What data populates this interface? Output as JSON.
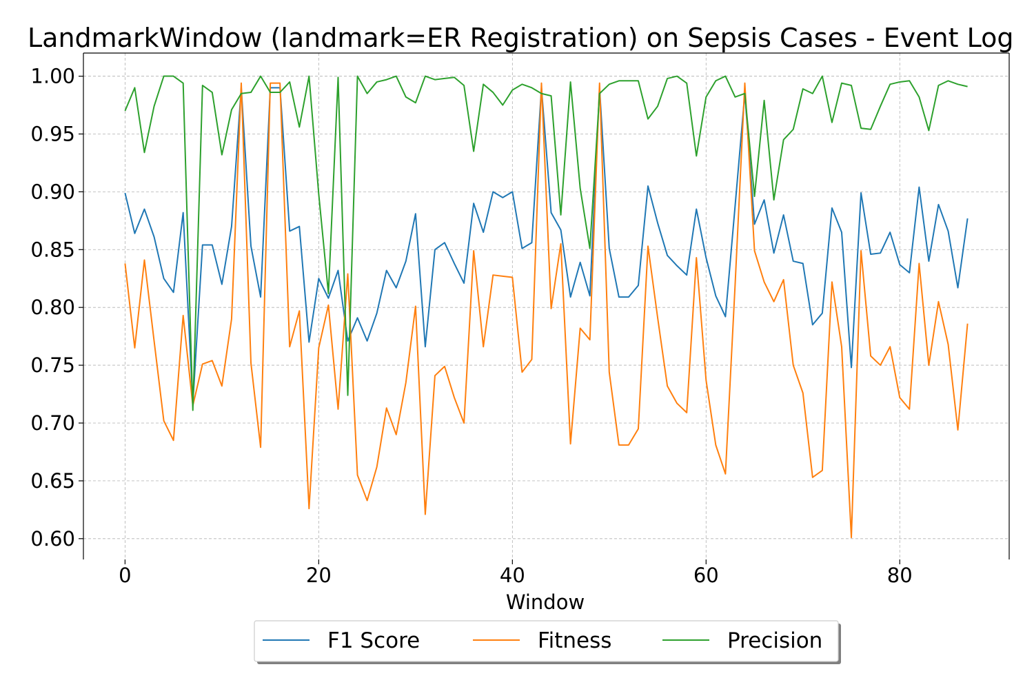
{
  "chart_data": {
    "type": "line",
    "title": "LandmarkWindow (landmark=ER Registration) on Sepsis Cases - Event Log",
    "xlabel": "Window",
    "ylabel": "",
    "xlim": [
      -4.3,
      91.3
    ],
    "ylim": [
      0.582,
      1.02
    ],
    "grid": true,
    "legend_position": "bottom-center",
    "xticks": [
      0,
      20,
      40,
      60,
      80
    ],
    "yticks": [
      0.6,
      0.65,
      0.7,
      0.75,
      0.8,
      0.85,
      0.9,
      0.95,
      1.0
    ],
    "xtick_labels": [
      "0",
      "20",
      "40",
      "60",
      "80"
    ],
    "ytick_labels": [
      "0.60",
      "0.65",
      "0.70",
      "0.75",
      "0.80",
      "0.85",
      "0.90",
      "0.95",
      "1.00"
    ],
    "x": [
      0,
      1,
      2,
      3,
      4,
      5,
      6,
      7,
      8,
      9,
      10,
      11,
      12,
      13,
      14,
      15,
      16,
      17,
      18,
      19,
      20,
      21,
      22,
      23,
      24,
      25,
      26,
      27,
      28,
      29,
      30,
      31,
      32,
      33,
      34,
      35,
      36,
      37,
      38,
      39,
      40,
      41,
      42,
      43,
      44,
      45,
      46,
      47,
      48,
      49,
      50,
      51,
      52,
      53,
      54,
      55,
      56,
      57,
      58,
      59,
      60,
      61,
      62,
      63,
      64,
      65,
      66,
      67,
      68,
      69,
      70,
      71,
      72,
      73,
      74,
      75,
      76,
      77,
      78,
      79,
      80,
      81,
      82,
      83,
      84,
      85,
      86,
      87
    ],
    "series": [
      {
        "name": "F1 Score",
        "color": "#1f77b4",
        "values": [
          0.899,
          0.864,
          0.885,
          0.861,
          0.825,
          0.813,
          0.882,
          0.717,
          0.854,
          0.854,
          0.82,
          0.87,
          0.99,
          0.853,
          0.809,
          0.99,
          0.99,
          0.866,
          0.87,
          0.77,
          0.825,
          0.808,
          0.832,
          0.771,
          0.791,
          0.771,
          0.795,
          0.832,
          0.817,
          0.84,
          0.881,
          0.766,
          0.85,
          0.856,
          0.838,
          0.821,
          0.89,
          0.865,
          0.9,
          0.895,
          0.9,
          0.851,
          0.856,
          0.99,
          0.882,
          0.867,
          0.809,
          0.839,
          0.81,
          0.99,
          0.851,
          0.809,
          0.809,
          0.819,
          0.905,
          0.873,
          0.845,
          0.836,
          0.828,
          0.885,
          0.843,
          0.81,
          0.792,
          0.888,
          0.985,
          0.872,
          0.893,
          0.847,
          0.88,
          0.84,
          0.838,
          0.785,
          0.795,
          0.886,
          0.865,
          0.748,
          0.899,
          0.846,
          0.847,
          0.865,
          0.837,
          0.83,
          0.904,
          0.84,
          0.889,
          0.866,
          0.817,
          0.877
        ]
      },
      {
        "name": "Fitness",
        "color": "#ff7f0e",
        "values": [
          0.838,
          0.765,
          0.841,
          0.771,
          0.702,
          0.685,
          0.793,
          0.715,
          0.751,
          0.754,
          0.732,
          0.79,
          0.994,
          0.752,
          0.679,
          0.994,
          0.994,
          0.766,
          0.797,
          0.626,
          0.765,
          0.802,
          0.712,
          0.829,
          0.655,
          0.633,
          0.662,
          0.713,
          0.69,
          0.735,
          0.801,
          0.621,
          0.741,
          0.749,
          0.722,
          0.7,
          0.849,
          0.766,
          0.828,
          0.827,
          0.826,
          0.744,
          0.755,
          0.994,
          0.799,
          0.855,
          0.682,
          0.782,
          0.772,
          0.994,
          0.744,
          0.681,
          0.681,
          0.695,
          0.853,
          0.791,
          0.732,
          0.717,
          0.709,
          0.843,
          0.737,
          0.681,
          0.656,
          0.82,
          0.994,
          0.849,
          0.822,
          0.805,
          0.824,
          0.75,
          0.726,
          0.653,
          0.659,
          0.822,
          0.766,
          0.601,
          0.849,
          0.758,
          0.75,
          0.766,
          0.722,
          0.712,
          0.838,
          0.75,
          0.805,
          0.768,
          0.694,
          0.786
        ]
      },
      {
        "name": "Precision",
        "color": "#2ca02c",
        "values": [
          0.97,
          0.99,
          0.934,
          0.974,
          1.0,
          1.0,
          0.994,
          0.711,
          0.992,
          0.986,
          0.932,
          0.971,
          0.985,
          0.986,
          1.0,
          0.986,
          0.986,
          0.995,
          0.956,
          1.0,
          0.898,
          0.812,
          0.999,
          0.724,
          1.0,
          0.985,
          0.995,
          0.997,
          1.0,
          0.982,
          0.977,
          1.0,
          0.997,
          0.998,
          0.999,
          0.992,
          0.935,
          0.993,
          0.986,
          0.975,
          0.988,
          0.993,
          0.99,
          0.985,
          0.983,
          0.88,
          0.995,
          0.903,
          0.851,
          0.985,
          0.993,
          0.996,
          0.996,
          0.996,
          0.963,
          0.974,
          0.998,
          1.0,
          0.994,
          0.931,
          0.982,
          0.996,
          1.0,
          0.982,
          0.985,
          0.896,
          0.979,
          0.893,
          0.945,
          0.954,
          0.989,
          0.985,
          1.0,
          0.96,
          0.994,
          0.992,
          0.955,
          0.954,
          0.974,
          0.993,
          0.995,
          0.996,
          0.982,
          0.953,
          0.992,
          0.996,
          0.993,
          0.991
        ]
      }
    ]
  }
}
